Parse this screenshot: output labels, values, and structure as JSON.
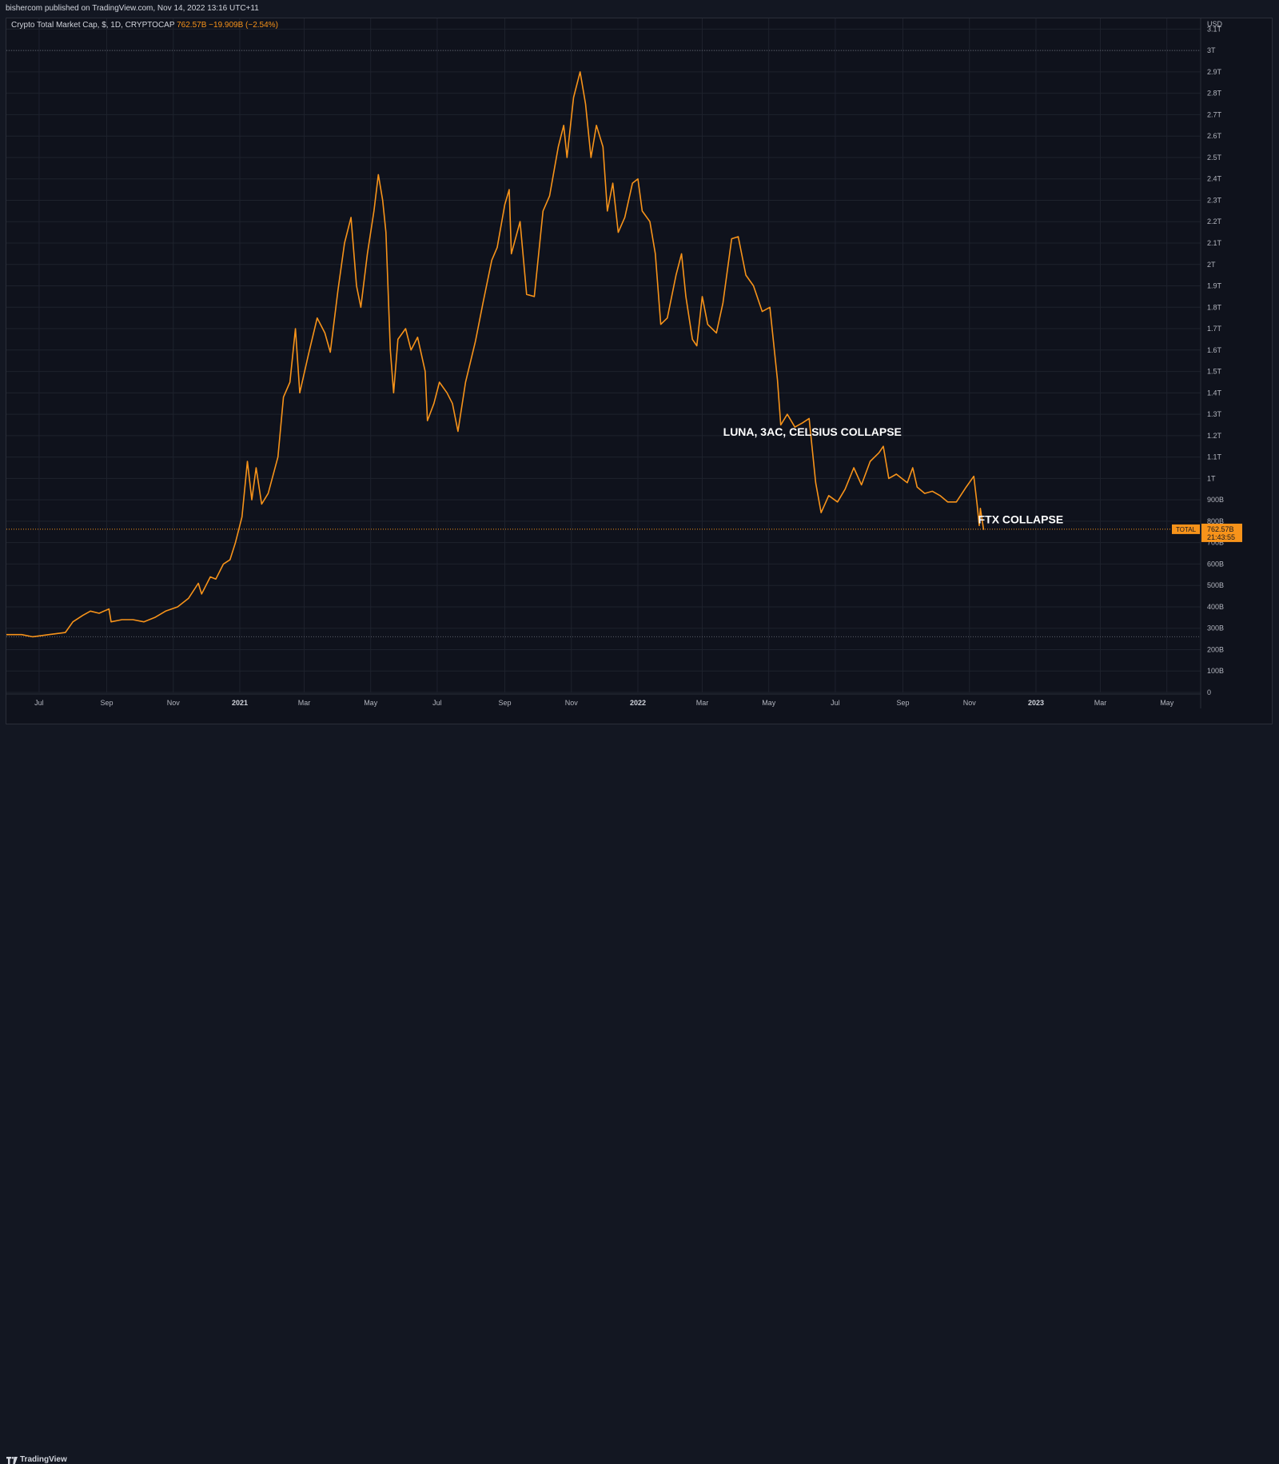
{
  "header": {
    "published": "bishercom published on TradingView.com, Nov 14, 2022 13:16 UTC+11"
  },
  "symbol": {
    "name": "Crypto Total Market Cap, $, 1D, CRYPTOCAP",
    "last": "762.57B",
    "change": "−19.909B (−2.54%)"
  },
  "footer": {
    "brand": "TradingView"
  },
  "price_label": {
    "ticker": "TOTAL",
    "value": "762.57B",
    "countdown": "21:43:55"
  },
  "colors": {
    "line": "#f7931a",
    "background": "#0f121c",
    "grid": "#1e222d",
    "text": "#b2b5be",
    "label_bg": "#f7931a",
    "dotted": "#5d606b"
  },
  "chart_data": {
    "type": "line",
    "ylabel": "USD",
    "yunit": "trillion USD",
    "y_ticks": [
      "0",
      "100B",
      "200B",
      "300B",
      "400B",
      "500B",
      "600B",
      "700B",
      "800B",
      "900B",
      "1T",
      "1.1T",
      "1.2T",
      "1.3T",
      "1.4T",
      "1.5T",
      "1.6T",
      "1.7T",
      "1.8T",
      "1.9T",
      "2T",
      "2.1T",
      "2.2T",
      "2.3T",
      "2.4T",
      "2.5T",
      "2.6T",
      "2.7T",
      "2.8T",
      "2.9T",
      "3T",
      "3.1T"
    ],
    "y_tick_values": [
      0,
      0.1,
      0.2,
      0.3,
      0.4,
      0.5,
      0.6,
      0.7,
      0.8,
      0.9,
      1.0,
      1.1,
      1.2,
      1.3,
      1.4,
      1.5,
      1.6,
      1.7,
      1.8,
      1.9,
      2.0,
      2.1,
      2.2,
      2.3,
      2.4,
      2.5,
      2.6,
      2.7,
      2.8,
      2.9,
      3.0,
      3.1
    ],
    "ylim": [
      0,
      3.15
    ],
    "xlim": [
      "2020-06-01",
      "2023-06-01"
    ],
    "x_ticks": [
      {
        "date": "2020-07-01",
        "label": "Jul",
        "bold": false
      },
      {
        "date": "2020-09-01",
        "label": "Sep",
        "bold": false
      },
      {
        "date": "2020-11-01",
        "label": "Nov",
        "bold": false
      },
      {
        "date": "2021-01-01",
        "label": "2021",
        "bold": true
      },
      {
        "date": "2021-03-01",
        "label": "Mar",
        "bold": false
      },
      {
        "date": "2021-05-01",
        "label": "May",
        "bold": false
      },
      {
        "date": "2021-07-01",
        "label": "Jul",
        "bold": false
      },
      {
        "date": "2021-09-01",
        "label": "Sep",
        "bold": false
      },
      {
        "date": "2021-11-01",
        "label": "Nov",
        "bold": false
      },
      {
        "date": "2022-01-01",
        "label": "2022",
        "bold": true
      },
      {
        "date": "2022-03-01",
        "label": "Mar",
        "bold": false
      },
      {
        "date": "2022-05-01",
        "label": "May",
        "bold": false
      },
      {
        "date": "2022-07-01",
        "label": "Jul",
        "bold": false
      },
      {
        "date": "2022-09-01",
        "label": "Sep",
        "bold": false
      },
      {
        "date": "2022-11-01",
        "label": "Nov",
        "bold": false
      },
      {
        "date": "2023-01-01",
        "label": "2023",
        "bold": true
      },
      {
        "date": "2023-03-01",
        "label": "Mar",
        "bold": false
      },
      {
        "date": "2023-05-01",
        "label": "May",
        "bold": false
      }
    ],
    "hlines": [
      3.0,
      0.26
    ],
    "current_value": 0.76257,
    "annotations": [
      {
        "text": "LUNA, 3AC, CELSIUS COLLAPSE",
        "date": "2022-06-10",
        "y": 1.2
      },
      {
        "text": "FTX COLLAPSE",
        "date": "2022-12-18",
        "y": 0.79
      }
    ],
    "series": [
      {
        "points": [
          [
            "2020-06-01",
            0.27
          ],
          [
            "2020-06-15",
            0.27
          ],
          [
            "2020-06-25",
            0.26
          ],
          [
            "2020-07-10",
            0.27
          ],
          [
            "2020-07-25",
            0.28
          ],
          [
            "2020-08-01",
            0.33
          ],
          [
            "2020-08-10",
            0.36
          ],
          [
            "2020-08-17",
            0.38
          ],
          [
            "2020-08-25",
            0.37
          ],
          [
            "2020-09-03",
            0.39
          ],
          [
            "2020-09-05",
            0.33
          ],
          [
            "2020-09-15",
            0.34
          ],
          [
            "2020-09-25",
            0.34
          ],
          [
            "2020-10-05",
            0.33
          ],
          [
            "2020-10-15",
            0.35
          ],
          [
            "2020-10-25",
            0.38
          ],
          [
            "2020-11-05",
            0.4
          ],
          [
            "2020-11-15",
            0.44
          ],
          [
            "2020-11-24",
            0.51
          ],
          [
            "2020-11-27",
            0.46
          ],
          [
            "2020-12-05",
            0.54
          ],
          [
            "2020-12-10",
            0.53
          ],
          [
            "2020-12-17",
            0.6
          ],
          [
            "2020-12-23",
            0.62
          ],
          [
            "2020-12-28",
            0.7
          ],
          [
            "2021-01-03",
            0.82
          ],
          [
            "2021-01-08",
            1.08
          ],
          [
            "2021-01-12",
            0.9
          ],
          [
            "2021-01-16",
            1.05
          ],
          [
            "2021-01-21",
            0.88
          ],
          [
            "2021-01-27",
            0.93
          ],
          [
            "2021-02-05",
            1.1
          ],
          [
            "2021-02-10",
            1.38
          ],
          [
            "2021-02-16",
            1.45
          ],
          [
            "2021-02-21",
            1.7
          ],
          [
            "2021-02-25",
            1.4
          ],
          [
            "2021-03-05",
            1.58
          ],
          [
            "2021-03-13",
            1.75
          ],
          [
            "2021-03-20",
            1.68
          ],
          [
            "2021-03-25",
            1.59
          ],
          [
            "2021-04-01",
            1.88
          ],
          [
            "2021-04-07",
            2.1
          ],
          [
            "2021-04-13",
            2.22
          ],
          [
            "2021-04-18",
            1.9
          ],
          [
            "2021-04-22",
            1.8
          ],
          [
            "2021-04-28",
            2.05
          ],
          [
            "2021-05-04",
            2.25
          ],
          [
            "2021-05-08",
            2.42
          ],
          [
            "2021-05-12",
            2.3
          ],
          [
            "2021-05-15",
            2.15
          ],
          [
            "2021-05-19",
            1.6
          ],
          [
            "2021-05-22",
            1.4
          ],
          [
            "2021-05-26",
            1.65
          ],
          [
            "2021-06-02",
            1.7
          ],
          [
            "2021-06-07",
            1.6
          ],
          [
            "2021-06-13",
            1.66
          ],
          [
            "2021-06-20",
            1.5
          ],
          [
            "2021-06-22",
            1.27
          ],
          [
            "2021-06-28",
            1.35
          ],
          [
            "2021-07-03",
            1.45
          ],
          [
            "2021-07-10",
            1.4
          ],
          [
            "2021-07-15",
            1.35
          ],
          [
            "2021-07-20",
            1.22
          ],
          [
            "2021-07-27",
            1.45
          ],
          [
            "2021-08-05",
            1.64
          ],
          [
            "2021-08-12",
            1.82
          ],
          [
            "2021-08-20",
            2.02
          ],
          [
            "2021-08-25",
            2.08
          ],
          [
            "2021-09-01",
            2.28
          ],
          [
            "2021-09-05",
            2.35
          ],
          [
            "2021-09-07",
            2.05
          ],
          [
            "2021-09-15",
            2.2
          ],
          [
            "2021-09-21",
            1.86
          ],
          [
            "2021-09-28",
            1.85
          ],
          [
            "2021-10-06",
            2.25
          ],
          [
            "2021-10-12",
            2.32
          ],
          [
            "2021-10-20",
            2.55
          ],
          [
            "2021-10-25",
            2.65
          ],
          [
            "2021-10-28",
            2.5
          ],
          [
            "2021-11-03",
            2.78
          ],
          [
            "2021-11-09",
            2.9
          ],
          [
            "2021-11-14",
            2.75
          ],
          [
            "2021-11-19",
            2.5
          ],
          [
            "2021-11-24",
            2.65
          ],
          [
            "2021-11-30",
            2.55
          ],
          [
            "2021-12-04",
            2.25
          ],
          [
            "2021-12-09",
            2.38
          ],
          [
            "2021-12-14",
            2.15
          ],
          [
            "2021-12-20",
            2.22
          ],
          [
            "2021-12-27",
            2.38
          ],
          [
            "2022-01-01",
            2.4
          ],
          [
            "2022-01-05",
            2.25
          ],
          [
            "2022-01-12",
            2.2
          ],
          [
            "2022-01-17",
            2.05
          ],
          [
            "2022-01-22",
            1.72
          ],
          [
            "2022-01-28",
            1.75
          ],
          [
            "2022-02-05",
            1.95
          ],
          [
            "2022-02-10",
            2.05
          ],
          [
            "2022-02-14",
            1.85
          ],
          [
            "2022-02-20",
            1.65
          ],
          [
            "2022-02-24",
            1.62
          ],
          [
            "2022-03-01",
            1.85
          ],
          [
            "2022-03-06",
            1.72
          ],
          [
            "2022-03-14",
            1.68
          ],
          [
            "2022-03-20",
            1.82
          ],
          [
            "2022-03-28",
            2.12
          ],
          [
            "2022-04-03",
            2.13
          ],
          [
            "2022-04-10",
            1.95
          ],
          [
            "2022-04-17",
            1.9
          ],
          [
            "2022-04-25",
            1.78
          ],
          [
            "2022-05-02",
            1.8
          ],
          [
            "2022-05-09",
            1.46
          ],
          [
            "2022-05-12",
            1.25
          ],
          [
            "2022-05-18",
            1.3
          ],
          [
            "2022-05-25",
            1.24
          ],
          [
            "2022-06-01",
            1.26
          ],
          [
            "2022-06-07",
            1.28
          ],
          [
            "2022-06-13",
            0.98
          ],
          [
            "2022-06-18",
            0.84
          ],
          [
            "2022-06-25",
            0.92
          ],
          [
            "2022-07-03",
            0.89
          ],
          [
            "2022-07-10",
            0.95
          ],
          [
            "2022-07-18",
            1.05
          ],
          [
            "2022-07-25",
            0.97
          ],
          [
            "2022-08-02",
            1.08
          ],
          [
            "2022-08-10",
            1.12
          ],
          [
            "2022-08-14",
            1.15
          ],
          [
            "2022-08-19",
            1.0
          ],
          [
            "2022-08-26",
            1.02
          ],
          [
            "2022-09-05",
            0.98
          ],
          [
            "2022-09-10",
            1.05
          ],
          [
            "2022-09-14",
            0.96
          ],
          [
            "2022-09-21",
            0.93
          ],
          [
            "2022-09-28",
            0.94
          ],
          [
            "2022-10-05",
            0.92
          ],
          [
            "2022-10-12",
            0.89
          ],
          [
            "2022-10-20",
            0.89
          ],
          [
            "2022-10-29",
            0.96
          ],
          [
            "2022-11-05",
            1.01
          ],
          [
            "2022-11-08",
            0.88
          ],
          [
            "2022-11-10",
            0.78
          ],
          [
            "2022-11-11",
            0.86
          ],
          [
            "2022-11-14",
            0.76
          ]
        ]
      }
    ]
  }
}
